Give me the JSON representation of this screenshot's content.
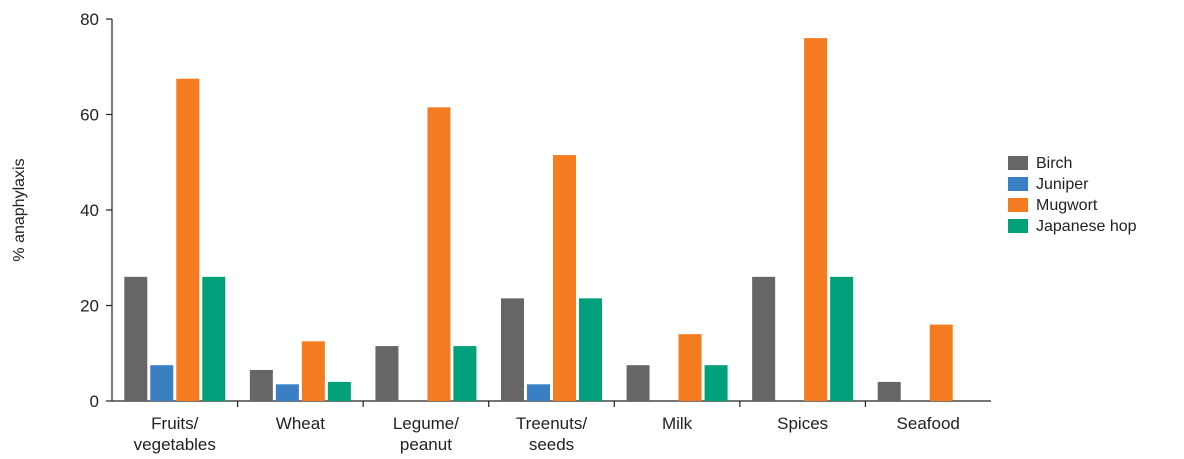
{
  "chart_data": {
    "type": "bar",
    "title": "",
    "xlabel": "",
    "ylabel": "% anaphylaxis",
    "ylim": [
      0,
      80
    ],
    "yticks": [
      0,
      20,
      40,
      60,
      80
    ],
    "grid": false,
    "legend_position": "right",
    "categories": [
      [
        "Fruits/",
        "vegetables"
      ],
      [
        "Wheat"
      ],
      [
        "Legume/",
        "peanut"
      ],
      [
        "Treenuts/",
        "seeds"
      ],
      [
        "Milk"
      ],
      [
        "Spices"
      ],
      [
        "Seafood"
      ]
    ],
    "series": [
      {
        "name": "Birch",
        "color": "#666666",
        "values": [
          26,
          6.5,
          11.5,
          21.5,
          7.5,
          26,
          4
        ]
      },
      {
        "name": "Juniper",
        "color": "#3a7fc4",
        "values": [
          7.5,
          3.5,
          0,
          3.5,
          0,
          0,
          0
        ]
      },
      {
        "name": "Mugwort",
        "color": "#f47b20",
        "values": [
          67.5,
          12.5,
          61.5,
          51.5,
          14,
          76,
          16
        ]
      },
      {
        "name": "Japanese hop",
        "color": "#00a07a",
        "values": [
          26,
          4,
          11.5,
          21.5,
          7.5,
          26,
          0
        ]
      }
    ]
  }
}
